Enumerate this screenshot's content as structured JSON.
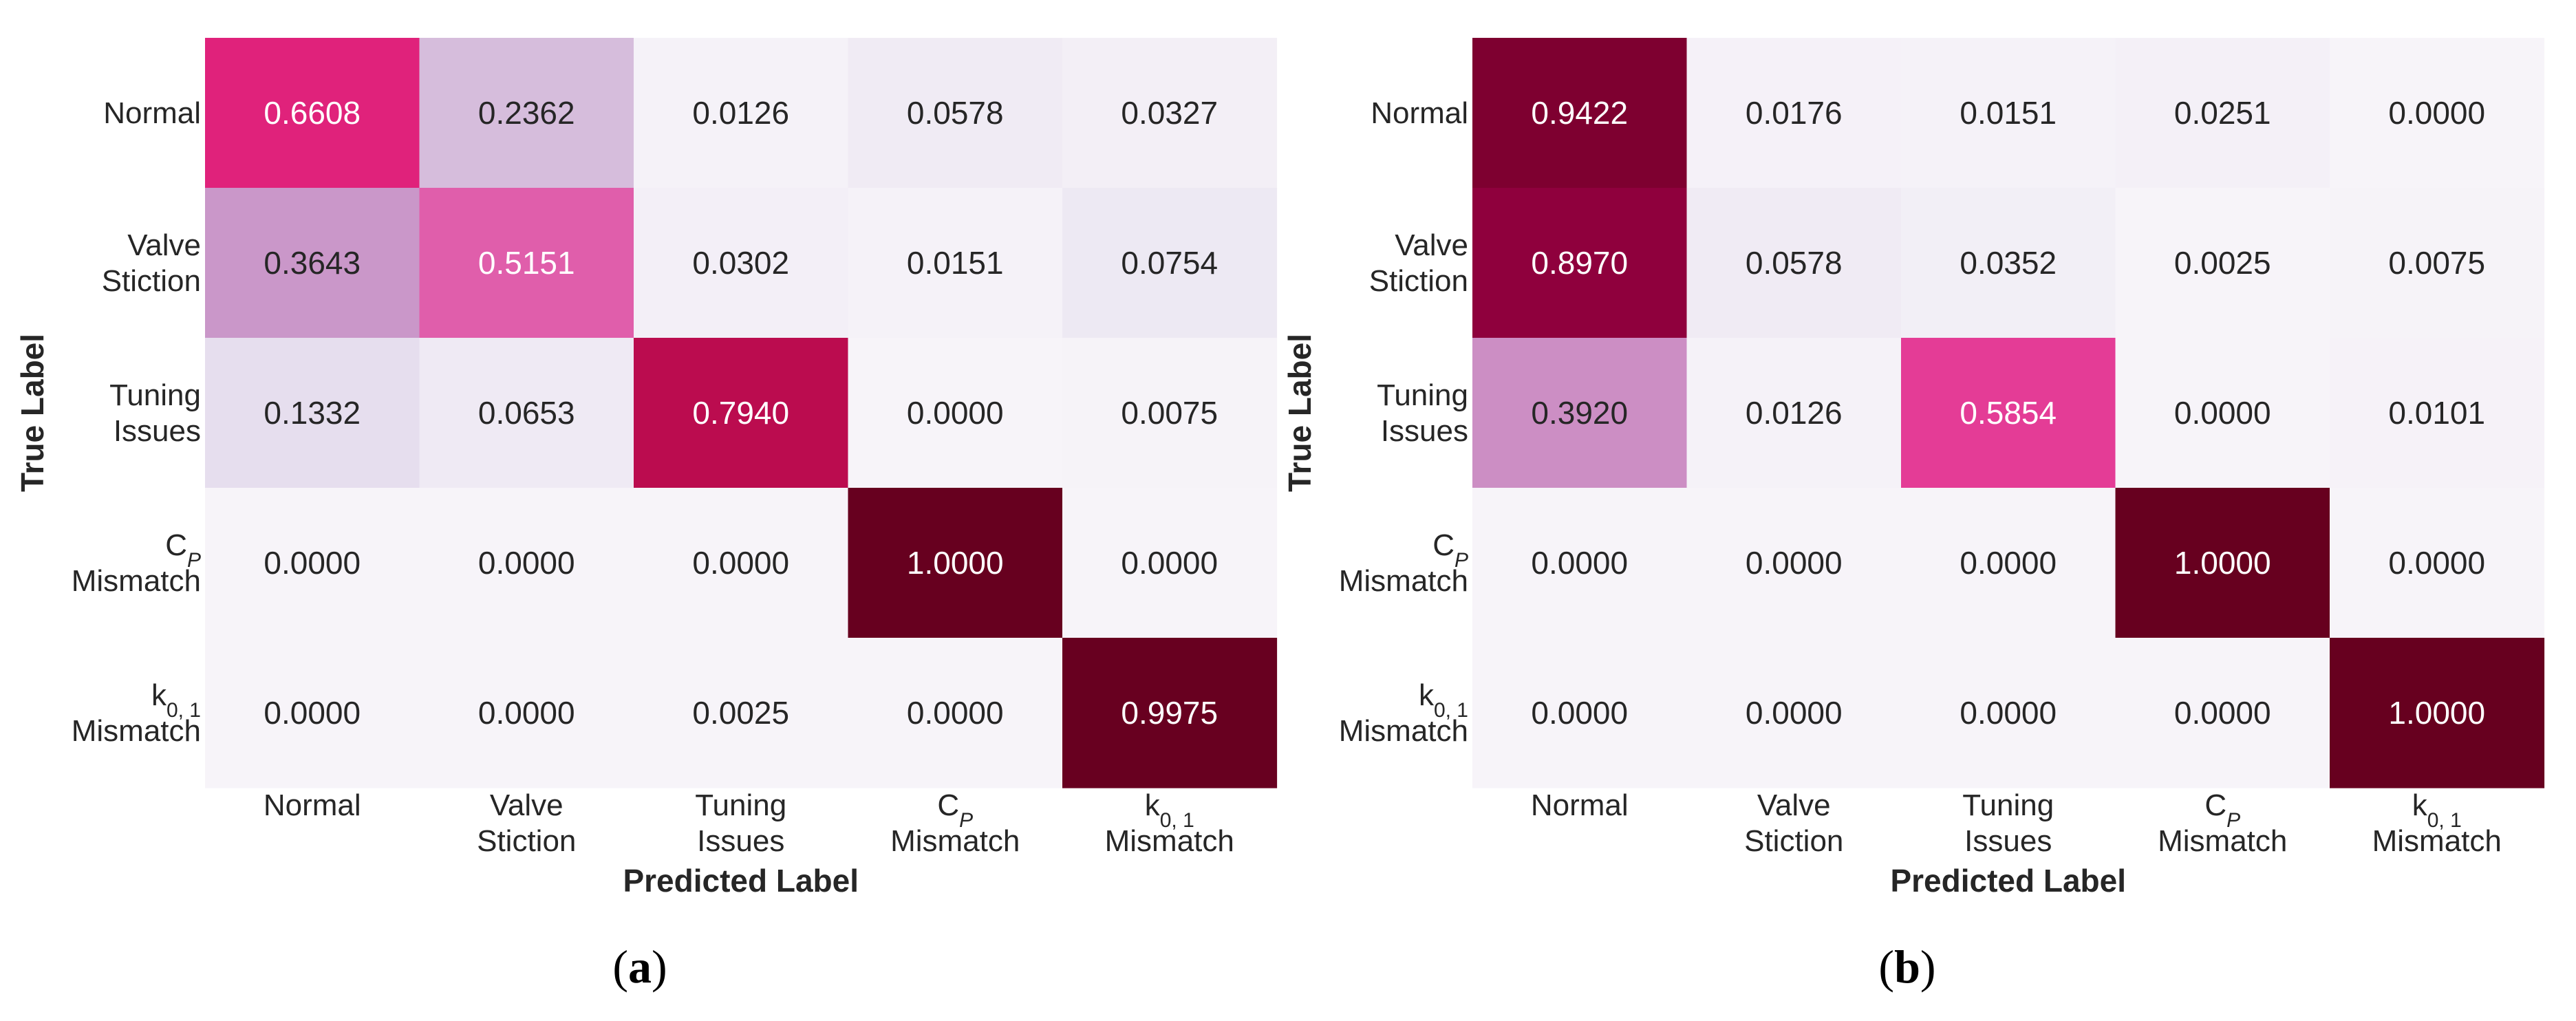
{
  "chart_data": [
    {
      "type": "heatmap",
      "panel_label": "(a)",
      "xlabel": "Predicted Label",
      "ylabel": "True Label",
      "x_tick_labels": [
        [
          "Normal"
        ],
        [
          "Valve",
          "Stiction"
        ],
        [
          "Tuning",
          "Issues"
        ],
        [
          {
            "base": "C",
            "sub": "P"
          },
          "Mismatch"
        ],
        [
          {
            "base": "k",
            "sub": "0, 1"
          },
          "Mismatch"
        ]
      ],
      "y_tick_labels": [
        [
          "Normal"
        ],
        [
          "Valve",
          "Stiction"
        ],
        [
          "Tuning",
          "Issues"
        ],
        [
          {
            "base": "C",
            "sub": "P"
          },
          "Mismatch"
        ],
        [
          {
            "base": "k",
            "sub": "0, 1"
          },
          "Mismatch"
        ]
      ],
      "values": [
        [
          0.6608,
          0.2362,
          0.0126,
          0.0578,
          0.0327
        ],
        [
          0.3643,
          0.5151,
          0.0302,
          0.0151,
          0.0754
        ],
        [
          0.1332,
          0.0653,
          0.794,
          0.0,
          0.0075
        ],
        [
          0.0,
          0.0,
          0.0,
          1.0,
          0.0
        ],
        [
          0.0,
          0.0,
          0.0025,
          0.0,
          0.9975
        ]
      ],
      "value_format": "0.0000",
      "color_range": [
        0,
        1
      ]
    },
    {
      "type": "heatmap",
      "panel_label": "(b)",
      "xlabel": "Predicted Label",
      "ylabel": "True Label",
      "x_tick_labels": [
        [
          "Normal"
        ],
        [
          "Valve",
          "Stiction"
        ],
        [
          "Tuning",
          "Issues"
        ],
        [
          {
            "base": "C",
            "sub": "P"
          },
          "Mismatch"
        ],
        [
          {
            "base": "k",
            "sub": "0, 1"
          },
          "Mismatch"
        ]
      ],
      "y_tick_labels": [
        [
          "Normal"
        ],
        [
          "Valve",
          "Stiction"
        ],
        [
          "Tuning",
          "Issues"
        ],
        [
          {
            "base": "C",
            "sub": "P"
          },
          "Mismatch"
        ],
        [
          {
            "base": "k",
            "sub": "0, 1"
          },
          "Mismatch"
        ]
      ],
      "values": [
        [
          0.9422,
          0.0176,
          0.0151,
          0.0251,
          0.0
        ],
        [
          0.897,
          0.0578,
          0.0352,
          0.0025,
          0.0075
        ],
        [
          0.392,
          0.0126,
          0.5854,
          0.0,
          0.0101
        ],
        [
          0.0,
          0.0,
          0.0,
          1.0,
          0.0
        ],
        [
          0.0,
          0.0,
          0.0,
          0.0,
          1.0
        ]
      ],
      "value_format": "0.0000",
      "color_range": [
        0,
        1
      ]
    }
  ],
  "colormap": {
    "name": "PuRd",
    "stops": [
      "#f7f4f9",
      "#e7e1ef",
      "#d4b9da",
      "#c994c7",
      "#df65b0",
      "#e7298a",
      "#ce1256",
      "#980043",
      "#67001f"
    ]
  }
}
